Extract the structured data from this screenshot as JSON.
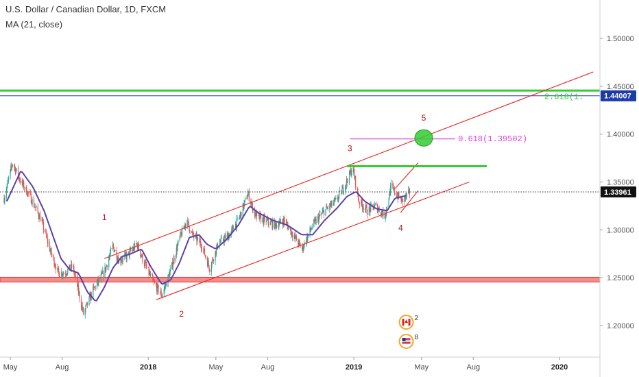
{
  "header": {
    "title": "U.S. Dollar / Canadian Dollar, 1D, FXCM",
    "indicator": "MA (21, close)"
  },
  "colors": {
    "up_candle": "#26a69a",
    "down_candle": "#ef5350",
    "ma_line": "#5b3fa8",
    "channel": "#e8302c",
    "support_zone": "#e8302c",
    "target_line": "#33cc33",
    "fib_line": "#e040e0",
    "price_tag": "#111111",
    "price_tag_blue": "#1c3aa8"
  },
  "chart_data": {
    "type": "candlestick",
    "title": "U.S. Dollar / Canadian Dollar, 1D, FXCM",
    "xlabel": "",
    "ylabel": "",
    "x_range": [
      "2017-05-01",
      "2020-02-27"
    ],
    "ylim": [
      1.17,
      1.535
    ],
    "y_ticks": [
      "1.50000",
      "1.45000",
      "1.40000",
      "1.35000",
      "1.30000",
      "1.25000",
      "1.20000"
    ],
    "x_ticks": [
      {
        "label": "May",
        "date": "2017-05-01"
      },
      {
        "label": "Aug",
        "date": "2017-08-01"
      },
      {
        "label": "2018",
        "date": "2018-01-01",
        "bold": true
      },
      {
        "label": "May",
        "date": "2018-05-01"
      },
      {
        "label": "Aug",
        "date": "2018-08-01"
      },
      {
        "label": "2019",
        "date": "2019-01-01",
        "bold": true
      },
      {
        "label": "May",
        "date": "2019-05-01"
      },
      {
        "label": "Aug",
        "date": "2019-08-01"
      },
      {
        "label": "2020",
        "date": "2020-01-01",
        "bold": true
      }
    ],
    "price_path": [
      [
        "2017-04-20",
        1.333
      ],
      [
        "2017-05-05",
        1.37
      ],
      [
        "2017-05-20",
        1.35
      ],
      [
        "2017-06-05",
        1.335
      ],
      [
        "2017-06-25",
        1.31
      ],
      [
        "2017-07-10",
        1.28
      ],
      [
        "2017-07-25",
        1.255
      ],
      [
        "2017-08-05",
        1.255
      ],
      [
        "2017-08-20",
        1.262
      ],
      [
        "2017-09-08",
        1.212
      ],
      [
        "2017-09-25",
        1.237
      ],
      [
        "2017-10-15",
        1.256
      ],
      [
        "2017-10-30",
        1.283
      ],
      [
        "2017-11-10",
        1.268
      ],
      [
        "2017-11-25",
        1.273
      ],
      [
        "2017-12-12",
        1.285
      ],
      [
        "2017-12-25",
        1.265
      ],
      [
        "2018-01-10",
        1.245
      ],
      [
        "2018-01-25",
        1.232
      ],
      [
        "2018-02-10",
        1.258
      ],
      [
        "2018-02-25",
        1.29
      ],
      [
        "2018-03-10",
        1.31
      ],
      [
        "2018-03-20",
        1.295
      ],
      [
        "2018-04-05",
        1.285
      ],
      [
        "2018-04-20",
        1.26
      ],
      [
        "2018-05-05",
        1.285
      ],
      [
        "2018-05-25",
        1.295
      ],
      [
        "2018-06-10",
        1.31
      ],
      [
        "2018-06-27",
        1.338
      ],
      [
        "2018-07-10",
        1.315
      ],
      [
        "2018-07-25",
        1.31
      ],
      [
        "2018-08-15",
        1.305
      ],
      [
        "2018-08-30",
        1.31
      ],
      [
        "2018-09-15",
        1.295
      ],
      [
        "2018-10-01",
        1.28
      ],
      [
        "2018-10-20",
        1.305
      ],
      [
        "2018-11-10",
        1.32
      ],
      [
        "2018-11-30",
        1.33
      ],
      [
        "2018-12-15",
        1.345
      ],
      [
        "2018-12-30",
        1.365
      ],
      [
        "2019-01-10",
        1.33
      ],
      [
        "2019-01-25",
        1.32
      ],
      [
        "2019-02-08",
        1.325
      ],
      [
        "2019-02-25",
        1.315
      ],
      [
        "2019-03-08",
        1.345
      ],
      [
        "2019-03-20",
        1.335
      ],
      [
        "2019-03-28",
        1.33
      ],
      [
        "2019-04-10",
        1.339
      ]
    ],
    "ma_path": [
      [
        "2017-04-25",
        1.33
      ],
      [
        "2017-05-20",
        1.362
      ],
      [
        "2017-06-10",
        1.345
      ],
      [
        "2017-06-30",
        1.32
      ],
      [
        "2017-07-15",
        1.295
      ],
      [
        "2017-07-30",
        1.27
      ],
      [
        "2017-08-15",
        1.258
      ],
      [
        "2017-08-30",
        1.255
      ],
      [
        "2017-09-15",
        1.235
      ],
      [
        "2017-09-30",
        1.225
      ],
      [
        "2017-10-15",
        1.24
      ],
      [
        "2017-10-30",
        1.26
      ],
      [
        "2017-11-15",
        1.272
      ],
      [
        "2017-12-01",
        1.275
      ],
      [
        "2017-12-20",
        1.28
      ],
      [
        "2018-01-05",
        1.262
      ],
      [
        "2018-01-25",
        1.243
      ],
      [
        "2018-02-10",
        1.248
      ],
      [
        "2018-02-25",
        1.265
      ],
      [
        "2018-03-15",
        1.292
      ],
      [
        "2018-04-01",
        1.295
      ],
      [
        "2018-04-15",
        1.285
      ],
      [
        "2018-05-01",
        1.28
      ],
      [
        "2018-05-20",
        1.29
      ],
      [
        "2018-06-10",
        1.305
      ],
      [
        "2018-06-30",
        1.325
      ],
      [
        "2018-07-15",
        1.318
      ],
      [
        "2018-08-10",
        1.31
      ],
      [
        "2018-09-05",
        1.305
      ],
      [
        "2018-09-30",
        1.295
      ],
      [
        "2018-10-20",
        1.295
      ],
      [
        "2018-11-10",
        1.31
      ],
      [
        "2018-12-01",
        1.322
      ],
      [
        "2018-12-20",
        1.335
      ],
      [
        "2019-01-05",
        1.34
      ],
      [
        "2019-01-20",
        1.33
      ],
      [
        "2019-02-10",
        1.322
      ],
      [
        "2019-03-01",
        1.32
      ],
      [
        "2019-03-15",
        1.333
      ],
      [
        "2019-04-05",
        1.336
      ]
    ],
    "last_price": {
      "label": "1.33961",
      "value": 1.33961
    },
    "horizontal_levels": [
      {
        "name": "resistance",
        "value": 1.44007,
        "label": "1.44007",
        "color": "#1c3aa8"
      },
      {
        "name": "target",
        "value": 1.4455,
        "color": "#33cc33"
      },
      {
        "name": "support-zone",
        "from": 1.2455,
        "to": 1.2505,
        "color": "#e8302c"
      }
    ],
    "trendlines": [
      {
        "name": "channel-upper",
        "from": [
          "2017-10-15",
          1.27
        ],
        "to": [
          "2020-03-01",
          1.465
        ]
      },
      {
        "name": "channel-lower",
        "from": [
          "2018-01-15",
          1.227
        ],
        "to": [
          "2019-07-25",
          1.35
        ]
      },
      {
        "name": "wedge-upper",
        "from": [
          "2019-03-15",
          1.343
        ],
        "to": [
          "2019-04-25",
          1.37
        ]
      },
      {
        "name": "wedge-lower",
        "from": [
          "2019-03-25",
          1.318
        ],
        "to": [
          "2019-04-25",
          1.341
        ]
      }
    ],
    "segments": [
      {
        "name": "wave3-level",
        "from": [
          "2018-12-20",
          1.3665
        ],
        "to": [
          "2019-08-25",
          1.3665
        ],
        "color": "#33cc33"
      },
      {
        "name": "fib-0618",
        "from": [
          "2018-12-25",
          1.395
        ],
        "to": [
          "2019-06-30",
          1.395
        ],
        "color": "#e040e0"
      }
    ],
    "annotations": [
      {
        "text": "0.618(1.39502)",
        "at": [
          "2019-07-05",
          1.3955
        ],
        "color": "#e040e0"
      },
      {
        "text": "2.618(1.",
        "at": [
          "2019-12-05",
          1.4395
        ],
        "color": "#33cc33"
      }
    ],
    "target_circle": {
      "center": [
        "2019-05-05",
        1.396
      ],
      "color": "#33cc33"
    },
    "wave_labels": [
      {
        "text": "1",
        "at": [
          "2017-10-15",
          1.313
        ]
      },
      {
        "text": "2",
        "at": [
          "2018-03-01",
          1.212
        ]
      },
      {
        "text": "3",
        "at": [
          "2018-12-25",
          1.385
        ]
      },
      {
        "text": "4",
        "at": [
          "2019-03-25",
          1.302
        ]
      },
      {
        "text": "5",
        "at": [
          "2019-05-05",
          1.417
        ]
      }
    ],
    "event_badges": [
      {
        "name": "canada-flag",
        "count": "2",
        "at": "2019-04-04"
      },
      {
        "name": "us-flag",
        "count": "8",
        "at": "2019-04-04"
      }
    ]
  }
}
